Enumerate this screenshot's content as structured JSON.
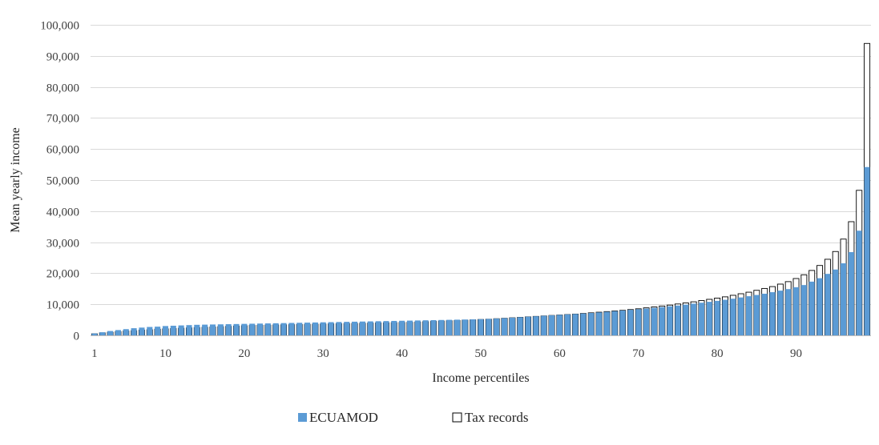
{
  "chart_data": {
    "type": "bar",
    "xlabel": "Income percentiles",
    "ylabel": "Mean yearly income",
    "ylim": [
      0,
      100000
    ],
    "yticks": [
      0,
      10000,
      20000,
      30000,
      40000,
      50000,
      60000,
      70000,
      80000,
      90000,
      100000
    ],
    "ytick_labels": [
      "0",
      "10,000",
      "20,000",
      "30,000",
      "40,000",
      "50,000",
      "60,000",
      "70,000",
      "80,000",
      "90,000",
      "100,000"
    ],
    "x": [
      1,
      2,
      3,
      4,
      5,
      6,
      7,
      8,
      9,
      10,
      11,
      12,
      13,
      14,
      15,
      16,
      17,
      18,
      19,
      20,
      21,
      22,
      23,
      24,
      25,
      26,
      27,
      28,
      29,
      30,
      31,
      32,
      33,
      34,
      35,
      36,
      37,
      38,
      39,
      40,
      41,
      42,
      43,
      44,
      45,
      46,
      47,
      48,
      49,
      50,
      51,
      52,
      53,
      54,
      55,
      56,
      57,
      58,
      59,
      60,
      61,
      62,
      63,
      64,
      65,
      66,
      67,
      68,
      69,
      70,
      71,
      72,
      73,
      74,
      75,
      76,
      77,
      78,
      79,
      80,
      81,
      82,
      83,
      84,
      85,
      86,
      87,
      88,
      89,
      90,
      91,
      92,
      93,
      94,
      95,
      96,
      97,
      98,
      99
    ],
    "xtick_labels": [
      "1",
      "10",
      "20",
      "30",
      "40",
      "50",
      "60",
      "70",
      "80",
      "90"
    ],
    "xticks": [
      1,
      10,
      20,
      30,
      40,
      50,
      60,
      70,
      80,
      90
    ],
    "grid": true,
    "legend_position": "bottom-center",
    "series": [
      {
        "name": "ECUAMOD",
        "color": "#5b9bd5",
        "style": "filled",
        "values": [
          600,
          1000,
          1400,
          1700,
          2000,
          2300,
          2500,
          2700,
          2800,
          3000,
          3100,
          3200,
          3300,
          3400,
          3450,
          3500,
          3550,
          3600,
          3650,
          3700,
          3750,
          3800,
          3850,
          3900,
          3950,
          4000,
          4050,
          4100,
          4150,
          4200,
          4250,
          4300,
          4350,
          4400,
          4450,
          4500,
          4550,
          4600,
          4650,
          4700,
          4750,
          4800,
          4850,
          4900,
          4950,
          5000,
          5050,
          5100,
          5150,
          5200,
          5300,
          5400,
          5550,
          5700,
          5850,
          6000,
          6150,
          6300,
          6450,
          6600,
          6750,
          6900,
          7050,
          7200,
          7400,
          7600,
          7800,
          8000,
          8200,
          8400,
          8600,
          8850,
          9100,
          9350,
          9600,
          9900,
          10200,
          10500,
          10800,
          11100,
          11450,
          11800,
          12200,
          12600,
          13000,
          13400,
          13900,
          14400,
          14900,
          15500,
          16200,
          17300,
          18400,
          19800,
          21200,
          23200,
          26800,
          33700,
          54200
        ]
      },
      {
        "name": "Tax records",
        "color": "#ffffff",
        "stroke": "#000000",
        "style": "outlined",
        "values": [
          500,
          800,
          1000,
          1200,
          1400,
          1500,
          1700,
          1800,
          2000,
          2100,
          2200,
          2300,
          2400,
          2500,
          2600,
          2700,
          2800,
          2900,
          3000,
          3100,
          3200,
          3250,
          3300,
          3350,
          3400,
          3450,
          3500,
          3550,
          3600,
          3650,
          3700,
          3750,
          3800,
          3850,
          3900,
          3950,
          4000,
          4050,
          4100,
          4150,
          4200,
          4300,
          4400,
          4500,
          4600,
          4700,
          4800,
          4900,
          5000,
          5100,
          5200,
          5350,
          5500,
          5650,
          5800,
          5950,
          6100,
          6250,
          6400,
          6550,
          6700,
          6850,
          7050,
          7250,
          7450,
          7650,
          7850,
          8050,
          8300,
          8550,
          8850,
          9150,
          9450,
          9750,
          10100,
          10450,
          10800,
          11200,
          11600,
          12000,
          12400,
          12900,
          13400,
          13900,
          14500,
          15100,
          15700,
          16500,
          17300,
          18300,
          19500,
          20900,
          22500,
          24500,
          27000,
          31000,
          36600,
          46700,
          94000
        ]
      }
    ]
  }
}
